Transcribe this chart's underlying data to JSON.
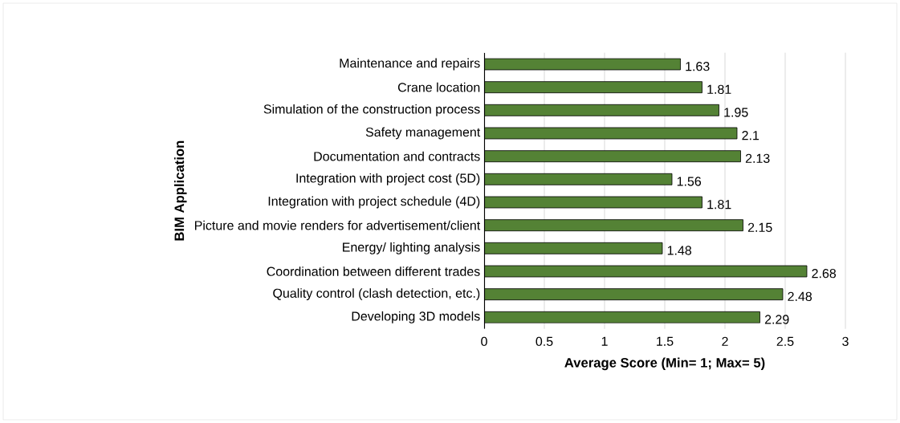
{
  "chart_data": {
    "type": "bar",
    "orientation": "horizontal",
    "xlabel": "Average Score (Min= 1; Max= 5)",
    "ylabel": "BIM Application",
    "categories": [
      "Maintenance and repairs",
      "Crane location",
      "Simulation of the construction process",
      "Safety management",
      "Documentation and contracts",
      "Integration with project cost (5D)",
      "Integration with project schedule (4D)",
      "Picture and movie renders for advertisement/client",
      "Energy/ lighting analysis",
      "Coordination between different trades",
      "Quality control (clash detection, etc.)",
      "Developing 3D models"
    ],
    "values": [
      1.63,
      1.81,
      1.95,
      2.1,
      2.13,
      1.56,
      1.81,
      2.15,
      1.48,
      2.68,
      2.48,
      2.29
    ],
    "color": "#548235",
    "xlim": [
      0,
      3
    ],
    "xticks": [
      0,
      0.5,
      1,
      1.5,
      2,
      2.5,
      3
    ],
    "grid": "x",
    "data_labels": true
  }
}
